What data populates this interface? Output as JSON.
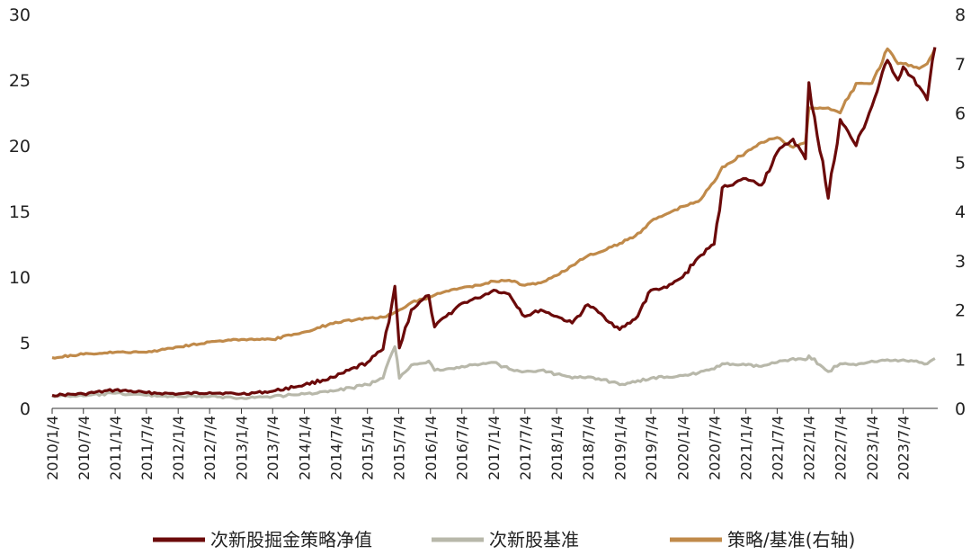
{
  "chart_data": {
    "type": "line",
    "x_tick_labels": [
      "2010/1/4",
      "2010/7/4",
      "2011/1/4",
      "2011/7/4",
      "2012/1/4",
      "2012/7/4",
      "2013/1/4",
      "2013/7/4",
      "2014/1/4",
      "2014/7/4",
      "2015/1/4",
      "2015/7/4",
      "2016/1/4",
      "2016/7/4",
      "2017/1/4",
      "2017/7/4",
      "2018/1/4",
      "2018/7/4",
      "2019/1/4",
      "2019/7/4",
      "2020/1/4",
      "2020/7/4",
      "2021/1/4",
      "2021/7/4",
      "2022/1/4",
      "2022/7/4",
      "2023/1/4",
      "2023/7/4"
    ],
    "y_left": {
      "ticks": [
        "0",
        "5",
        "10",
        "15",
        "20",
        "25",
        "30"
      ],
      "ylim": [
        0,
        30
      ]
    },
    "y_right": {
      "ticks": [
        "0",
        "1",
        "2",
        "3",
        "4",
        "5",
        "6",
        "7",
        "8"
      ],
      "ylim": [
        0,
        8
      ]
    },
    "legend_position": "bottom",
    "grid": false,
    "series": [
      {
        "name": "次新股掘金策略净值",
        "axis": "left",
        "color": "#6b0a0a",
        "x": [
          "2010/1/4",
          "2010/7/4",
          "2011/1/4",
          "2011/7/4",
          "2012/1/4",
          "2012/7/4",
          "2013/1/4",
          "2013/7/4",
          "2014/1/4",
          "2014/7/4",
          "2015/1/4",
          "2015/4/4",
          "2015/6/12",
          "2015/7/8",
          "2015/9/15",
          "2015/12/25",
          "2016/1/28",
          "2016/4/4",
          "2016/7/4",
          "2016/10/4",
          "2017/1/4",
          "2017/4/4",
          "2017/7/4",
          "2017/10/4",
          "2018/1/4",
          "2018/4/4",
          "2018/7/4",
          "2018/10/4",
          "2019/1/4",
          "2019/4/4",
          "2019/7/4",
          "2019/10/4",
          "2020/1/4",
          "2020/4/4",
          "2020/7/4",
          "2020/8/20",
          "2021/1/4",
          "2021/4/4",
          "2021/7/4",
          "2021/10/4",
          "2021/12/15",
          "2022/1/4",
          "2022/4/26",
          "2022/7/4",
          "2022/10/4",
          "2023/1/4",
          "2023/4/4",
          "2023/6/4",
          "2023/7/4",
          "2023/10/4",
          "2023/11/20",
          "2024/1/4"
        ],
        "values": [
          1.0,
          1.1,
          1.4,
          1.2,
          1.1,
          1.2,
          1.1,
          1.3,
          1.8,
          2.4,
          3.5,
          4.5,
          9.3,
          4.6,
          7.5,
          8.6,
          6.2,
          7.0,
          8.0,
          8.4,
          9.0,
          8.7,
          7.0,
          7.5,
          7.0,
          6.5,
          7.9,
          7.0,
          6.0,
          6.8,
          9.0,
          9.2,
          10.0,
          11.5,
          12.5,
          16.8,
          17.5,
          17.0,
          19.5,
          20.5,
          19.0,
          24.8,
          16.0,
          22.0,
          20.0,
          23.0,
          26.5,
          25.0,
          26.0,
          24.5,
          23.5,
          27.5
        ]
      },
      {
        "name": "次新股基准",
        "axis": "left",
        "color": "#b8b8aa",
        "x": [
          "2010/1/4",
          "2010/7/4",
          "2011/1/4",
          "2011/7/4",
          "2012/1/4",
          "2012/7/4",
          "2013/1/4",
          "2013/7/4",
          "2014/1/4",
          "2014/7/4",
          "2015/1/4",
          "2015/4/4",
          "2015/6/12",
          "2015/7/8",
          "2015/9/15",
          "2015/12/25",
          "2016/1/28",
          "2016/4/4",
          "2016/7/4",
          "2016/10/4",
          "2017/1/4",
          "2017/4/4",
          "2017/7/4",
          "2017/10/4",
          "2018/1/4",
          "2018/4/4",
          "2018/7/4",
          "2018/10/4",
          "2019/1/4",
          "2019/4/4",
          "2019/7/4",
          "2019/10/4",
          "2020/1/4",
          "2020/4/4",
          "2020/7/4",
          "2020/8/20",
          "2021/1/4",
          "2021/4/4",
          "2021/7/4",
          "2021/10/4",
          "2021/12/15",
          "2022/1/4",
          "2022/4/26",
          "2022/7/4",
          "2022/10/4",
          "2023/1/4",
          "2023/4/4",
          "2023/6/4",
          "2023/7/4",
          "2023/10/4",
          "2023/11/20",
          "2024/1/4"
        ],
        "values": [
          0.95,
          0.95,
          1.15,
          1.0,
          0.9,
          0.9,
          0.8,
          0.9,
          1.1,
          1.35,
          1.8,
          2.3,
          4.7,
          2.3,
          3.3,
          3.6,
          2.9,
          3.0,
          3.2,
          3.3,
          3.5,
          3.0,
          2.8,
          2.9,
          2.6,
          2.3,
          2.4,
          2.2,
          1.8,
          2.0,
          2.3,
          2.4,
          2.5,
          2.7,
          3.0,
          3.4,
          3.3,
          3.2,
          3.5,
          3.8,
          3.7,
          4.0,
          2.8,
          3.4,
          3.3,
          3.6,
          3.7,
          3.6,
          3.7,
          3.5,
          3.4,
          3.8
        ]
      },
      {
        "name": "策略/基准(右轴)",
        "axis": "right",
        "color": "#c08a4a",
        "x": [
          "2010/1/4",
          "2010/7/4",
          "2011/1/4",
          "2011/7/4",
          "2012/1/4",
          "2012/7/4",
          "2013/1/4",
          "2013/7/4",
          "2014/1/4",
          "2014/7/4",
          "2015/1/4",
          "2015/4/4",
          "2015/6/12",
          "2015/7/8",
          "2015/9/15",
          "2015/12/25",
          "2016/1/28",
          "2016/4/4",
          "2016/7/4",
          "2016/10/4",
          "2017/1/4",
          "2017/4/4",
          "2017/7/4",
          "2017/10/4",
          "2018/1/4",
          "2018/4/4",
          "2018/7/4",
          "2018/10/4",
          "2019/1/4",
          "2019/4/4",
          "2019/7/4",
          "2019/10/4",
          "2020/1/4",
          "2020/4/4",
          "2020/7/4",
          "2020/8/20",
          "2021/1/4",
          "2021/4/4",
          "2021/7/4",
          "2021/10/4",
          "2021/12/15",
          "2022/1/4",
          "2022/4/26",
          "2022/7/4",
          "2022/10/4",
          "2023/1/4",
          "2023/4/4",
          "2023/6/4",
          "2023/7/4",
          "2023/10/4",
          "2023/11/20",
          "2024/1/4"
        ],
        "values": [
          1.03,
          1.1,
          1.14,
          1.14,
          1.25,
          1.35,
          1.4,
          1.4,
          1.55,
          1.75,
          1.83,
          1.85,
          1.95,
          2.0,
          2.15,
          2.25,
          2.3,
          2.38,
          2.45,
          2.5,
          2.58,
          2.6,
          2.5,
          2.55,
          2.7,
          2.9,
          3.1,
          3.2,
          3.35,
          3.5,
          3.8,
          3.95,
          4.1,
          4.2,
          4.6,
          4.9,
          5.2,
          5.4,
          5.5,
          5.3,
          5.4,
          6.1,
          6.1,
          6.0,
          6.6,
          6.6,
          7.3,
          7.0,
          7.0,
          6.9,
          7.0,
          7.3
        ]
      }
    ]
  }
}
